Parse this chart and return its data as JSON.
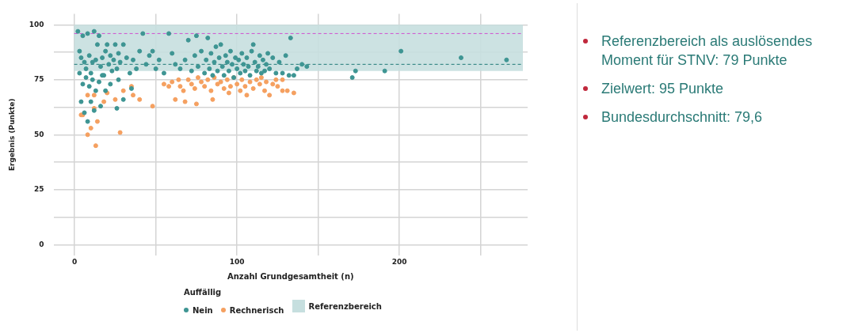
{
  "chart_data": {
    "type": "scatter",
    "xlabel": "Anzahl Grundgesamtheit (n)",
    "ylabel": "Ergebnis (Punkte)",
    "legend_title": "Auffällig",
    "legend": "bottom",
    "grid": true,
    "marker": "circle",
    "xlim": [
      -13,
      279
    ],
    "xticks": [
      0,
      {
        "value": 50,
        "label": null
      },
      100,
      {
        "value": 150,
        "label": null
      },
      200,
      {
        "value": 250,
        "label": null
      }
    ],
    "ylim": [
      -5,
      105
    ],
    "yticks": [
      0,
      {
        "value": 12.5,
        "label": null
      },
      25,
      {
        "value": 37.5,
        "label": null
      },
      50,
      {
        "value": 62.5,
        "label": null
      },
      75,
      {
        "value": 87.5,
        "label": null
      },
      100
    ],
    "bands": [
      {
        "axis": "y",
        "from": 79,
        "to": 100,
        "label": "Referenzbereich",
        "color": "#c6dfdf"
      }
    ],
    "ref_lines": [
      {
        "axis": "y",
        "value": 96,
        "color": "#d04fd0",
        "line_style": "dashed"
      },
      {
        "axis": "y",
        "value": 82,
        "color": "#1f7a78",
        "line_style": "dashed"
      }
    ],
    "series": [
      {
        "name": "Nein",
        "color": "#3e9593",
        "x": [
          2,
          3,
          4,
          5,
          6,
          7,
          8,
          9,
          10,
          11,
          12,
          13,
          14,
          15,
          16,
          17,
          18,
          19,
          20,
          21,
          22,
          23,
          24,
          25,
          26,
          27,
          28,
          30,
          32,
          34,
          36,
          38,
          40,
          42,
          44,
          46,
          48,
          50,
          52,
          55,
          58,
          60,
          62,
          65,
          3,
          5,
          7,
          9,
          11,
          13,
          15,
          17,
          22,
          27,
          35,
          4,
          6,
          8,
          10,
          12,
          16,
          19,
          30,
          26,
          68,
          70,
          72,
          74,
          75,
          76,
          78,
          80,
          81,
          82,
          83,
          84,
          85,
          86,
          87,
          88,
          89,
          90,
          91,
          92,
          93,
          94,
          95,
          96,
          97,
          98,
          99,
          100,
          101,
          102,
          103,
          104,
          105,
          106,
          107,
          108,
          109,
          110,
          111,
          112,
          113,
          114,
          115,
          116,
          117,
          118,
          119,
          120,
          122,
          124,
          126,
          128,
          130,
          132,
          133,
          135,
          137,
          140,
          143,
          171,
          173,
          191,
          201,
          238,
          266
        ],
        "values": [
          97,
          88,
          85,
          95,
          83,
          80,
          96,
          86,
          78,
          83,
          97,
          84,
          91,
          95,
          81,
          85,
          77,
          88,
          91,
          82,
          86,
          79,
          84,
          91,
          80,
          87,
          83,
          91,
          85,
          78,
          84,
          80,
          88,
          96,
          82,
          86,
          88,
          80,
          84,
          78,
          96,
          87,
          82,
          80,
          78,
          73,
          76,
          72,
          75,
          70,
          74,
          77,
          73,
          75,
          71,
          65,
          60,
          56,
          65,
          61,
          63,
          70,
          66,
          62,
          84,
          93,
          79,
          86,
          95,
          81,
          88,
          78,
          84,
          94,
          80,
          87,
          77,
          83,
          90,
          79,
          85,
          91,
          81,
          77,
          86,
          83,
          79,
          88,
          82,
          76,
          85,
          80,
          84,
          78,
          87,
          82,
          79,
          85,
          81,
          77,
          88,
          91,
          83,
          79,
          81,
          86,
          78,
          84,
          79,
          82,
          87,
          80,
          85,
          78,
          83,
          78,
          86,
          77,
          94,
          77,
          80,
          82,
          81,
          76,
          79,
          79,
          88,
          85,
          84
        ]
      },
      {
        "name": "Rechnerisch",
        "color": "#f5a060",
        "x": [
          4,
          5,
          8,
          10,
          13,
          14,
          12,
          20,
          28,
          18,
          25,
          30,
          8,
          12,
          36,
          35,
          40,
          48,
          55,
          58,
          60,
          62,
          64,
          65,
          67,
          68,
          70,
          72,
          74,
          75,
          76,
          78,
          80,
          82,
          84,
          85,
          86,
          88,
          90,
          92,
          94,
          95,
          96,
          98,
          100,
          102,
          103,
          105,
          106,
          108,
          110,
          112,
          114,
          115,
          117,
          118,
          120,
          122,
          124,
          125,
          128,
          131,
          135,
          128
        ],
        "values": [
          59,
          59,
          50,
          53,
          45,
          56,
          62,
          69,
          51,
          65,
          66,
          70,
          68,
          68,
          68,
          72,
          66,
          63,
          73,
          72,
          74,
          66,
          75,
          72,
          70,
          65,
          75,
          73,
          71,
          64,
          76,
          74,
          72,
          75,
          70,
          66,
          76,
          73,
          74,
          71,
          75,
          69,
          72,
          76,
          73,
          70,
          75,
          72,
          68,
          74,
          71,
          75,
          73,
          76,
          70,
          74,
          68,
          73,
          75,
          72,
          70,
          70,
          69,
          75
        ]
      }
    ],
    "annotations": [
      "Referenzbereich als auslösendes Moment für STNV: 79 Punkte",
      "Zielwert: 95 Punkte",
      "Bundesdurchschnitt: 79,6"
    ]
  }
}
